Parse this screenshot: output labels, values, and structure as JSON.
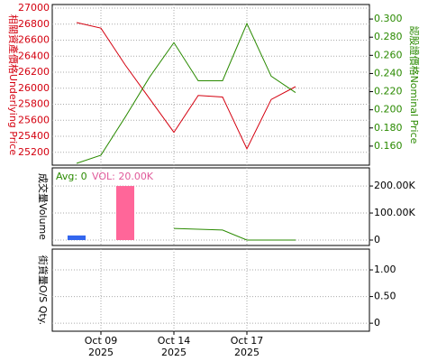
{
  "chart_data": [
    {
      "type": "line",
      "y_title": "相關資產價格Underlying Price",
      "y2_title": "認股證價格Nominal Price",
      "series": [
        {
          "color": "#d4000f",
          "values": [
            26820,
            26750,
            26290,
            25870,
            25450,
            25910,
            25890,
            25245,
            25860,
            26020
          ]
        },
        {
          "color": "#2a8a00",
          "axis": "y2",
          "values": [
            0.141,
            0.15,
            0.192,
            0.236,
            0.274,
            0.232,
            0.232,
            0.295,
            0.237,
            0.219
          ]
        }
      ],
      "ylim": [
        25040,
        27045
      ],
      "yticks": [
        25200,
        25400,
        25600,
        25800,
        26000,
        26200,
        26400,
        26600,
        26800,
        27000
      ],
      "y2lim": [
        0.139,
        0.316
      ],
      "y2ticks": [
        {
          "value": 0.16,
          "label": "0.160"
        },
        {
          "value": 0.18,
          "label": "0.180"
        },
        {
          "value": 0.2,
          "label": "0.200"
        },
        {
          "value": 0.22,
          "label": "0.220"
        },
        {
          "value": 0.24,
          "label": "0.240"
        },
        {
          "value": 0.26,
          "label": "0.260"
        },
        {
          "value": 0.28,
          "label": "0.280"
        },
        {
          "value": 0.3,
          "label": "0.300"
        }
      ],
      "grid": true
    },
    {
      "type": "bar",
      "y_title": "成交量Volume",
      "legend": [
        "Avg: 0",
        "VOL: 20.00K"
      ],
      "legend_colors": [
        "#2a8a00",
        "#e05a9a"
      ],
      "values": [
        17000,
        null,
        200000,
        null,
        null,
        null,
        null,
        null,
        null,
        null
      ],
      "bar_colors": [
        "#3366ee",
        null,
        "#ff6699",
        null,
        null,
        null,
        null,
        null,
        null,
        null
      ],
      "avg": {
        "color": "#2a8a00",
        "values": [
          null,
          null,
          null,
          null,
          43000,
          40000,
          37000,
          0,
          0,
          0
        ]
      },
      "ylim": [
        -20000,
        267000
      ],
      "y2ticks": [
        {
          "value": 0,
          "label": "0"
        },
        {
          "value": 100000,
          "label": "100.00K"
        },
        {
          "value": 200000,
          "label": "200.00K"
        }
      ],
      "grid": true
    },
    {
      "type": "empty",
      "y_title": "街貨量O/S Qty.",
      "ylim": [
        -0.15,
        1.39
      ],
      "y2ticks": [
        0,
        {
          "value": 0.5,
          "label": "0.50"
        },
        {
          "value": 1,
          "label": "1.00"
        }
      ],
      "grid": true,
      "xticks": [
        {
          "value": 1,
          "label": "Oct 09"
        },
        {
          "value": 4,
          "label": "Oct 14"
        },
        {
          "value": 7,
          "label": "Oct 17"
        }
      ],
      "xtick_years": [
        "2025",
        "2025",
        "2025"
      ]
    }
  ]
}
